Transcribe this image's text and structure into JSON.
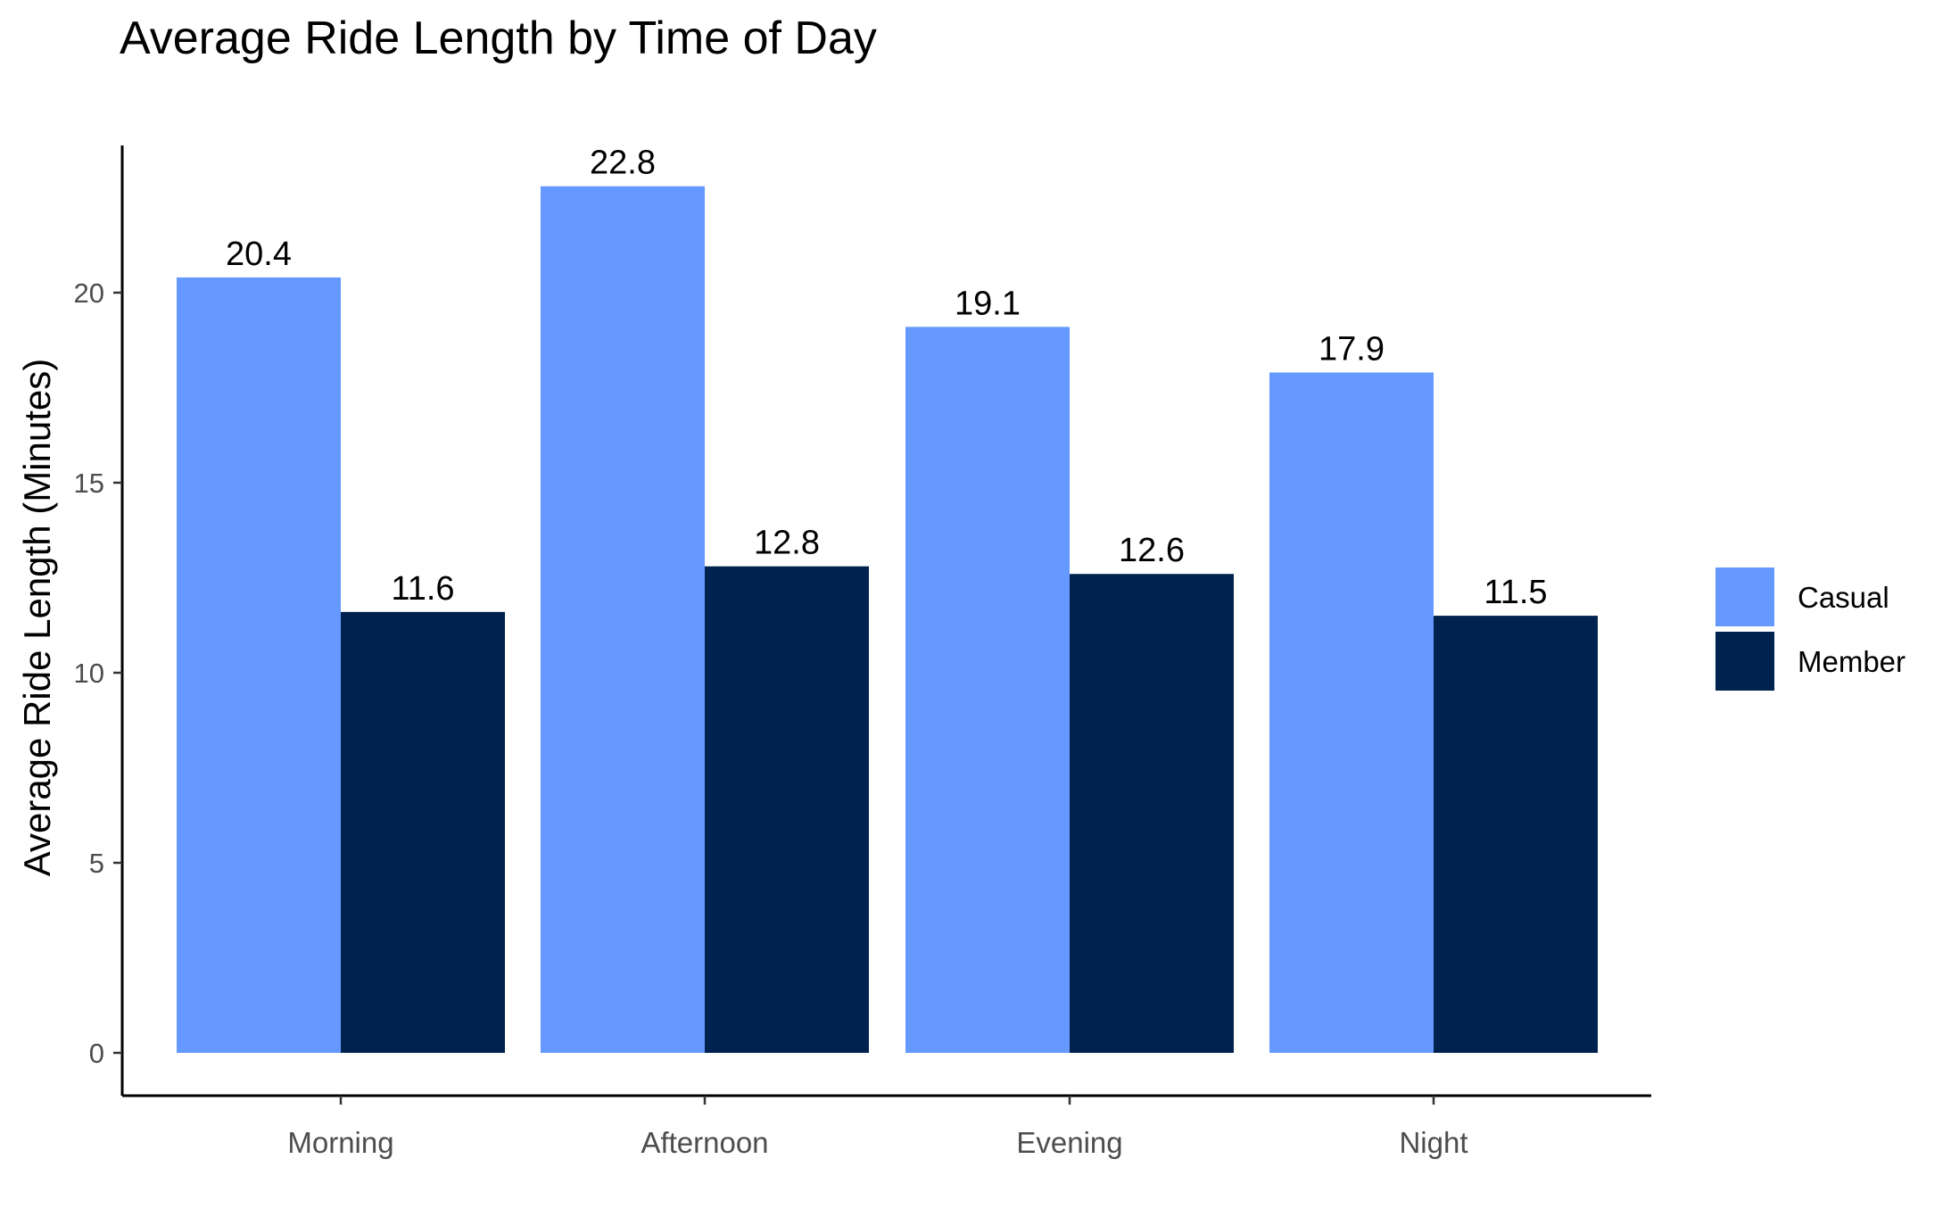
{
  "chart_data": {
    "type": "bar",
    "title": "Average Ride Length by Time of Day",
    "xlabel": "",
    "ylabel": "Average Ride Length (Minutes)",
    "categories": [
      "Morning",
      "Afternoon",
      "Evening",
      "Night"
    ],
    "series": [
      {
        "name": "Casual",
        "color": "#6699FF",
        "values": [
          20.4,
          22.8,
          19.1,
          17.9
        ]
      },
      {
        "name": "Member",
        "color": "#00224E",
        "values": [
          11.6,
          12.8,
          12.6,
          11.5
        ]
      }
    ],
    "ylim": [
      0,
      24
    ],
    "yticks": [
      0,
      5,
      10,
      15,
      20
    ],
    "grid": false,
    "legend_position": "right"
  }
}
